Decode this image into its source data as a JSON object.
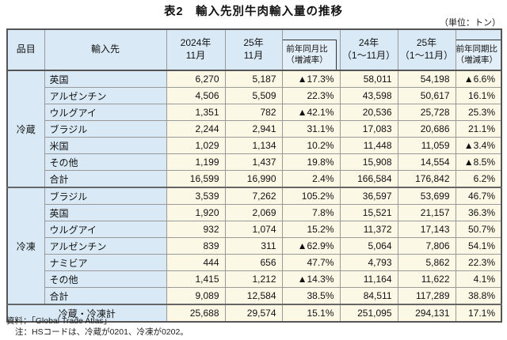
{
  "title": "表2　輸入先別牛肉輸入量の推移",
  "unit_note": "（単位：トン）",
  "table": {
    "columns": [
      {
        "label": "品目"
      },
      {
        "label": "輸入先"
      },
      {
        "line1": "2024年",
        "line2": "11月"
      },
      {
        "line1": "25年",
        "line2": "11月"
      },
      {
        "line1": "前年同月比",
        "line2": "（増減率）"
      },
      {
        "line1": "24年",
        "line2": "（1～11月）"
      },
      {
        "line1": "25年",
        "line2": "（1～11月）"
      },
      {
        "line1": "前年同期比",
        "line2": "（増減率）"
      }
    ],
    "sections": [
      {
        "label": "冷蔵",
        "rows": [
          {
            "source": "英国",
            "values": [
              "6,270",
              "5,187",
              "▲17.3%",
              "58,011",
              "54,198",
              "▲6.6%"
            ]
          },
          {
            "source": "アルゼンチン",
            "values": [
              "4,506",
              "5,509",
              "22.3%",
              "43,598",
              "50,617",
              "16.1%"
            ]
          },
          {
            "source": "ウルグアイ",
            "values": [
              "1,351",
              "782",
              "▲42.1%",
              "20,536",
              "25,728",
              "25.3%"
            ]
          },
          {
            "source": "ブラジル",
            "values": [
              "2,244",
              "2,941",
              "31.1%",
              "17,083",
              "20,686",
              "21.1%"
            ]
          },
          {
            "source": "米国",
            "values": [
              "1,029",
              "1,134",
              "10.2%",
              "11,448",
              "11,059",
              "▲3.4%"
            ]
          },
          {
            "source": "その他",
            "values": [
              "1,199",
              "1,437",
              "19.8%",
              "15,908",
              "14,554",
              "▲8.5%"
            ]
          },
          {
            "source": "合計",
            "values": [
              "16,599",
              "16,990",
              "2.4%",
              "166,584",
              "176,842",
              "6.2%"
            ]
          }
        ]
      },
      {
        "label": "冷凍",
        "rows": [
          {
            "source": "ブラジル",
            "values": [
              "3,539",
              "7,262",
              "105.2%",
              "36,597",
              "53,699",
              "46.7%"
            ]
          },
          {
            "source": "英国",
            "values": [
              "1,920",
              "2,069",
              "7.8%",
              "15,521",
              "21,157",
              "36.3%"
            ]
          },
          {
            "source": "ウルグアイ",
            "values": [
              "932",
              "1,074",
              "15.2%",
              "11,372",
              "17,143",
              "50.7%"
            ]
          },
          {
            "source": "アルゼンチン",
            "values": [
              "839",
              "311",
              "▲62.9%",
              "5,064",
              "7,806",
              "54.1%"
            ]
          },
          {
            "source": "ナミビア",
            "values": [
              "444",
              "656",
              "47.7%",
              "4,793",
              "5,862",
              "22.3%"
            ]
          },
          {
            "source": "その他",
            "values": [
              "1,415",
              "1,212",
              "▲14.3%",
              "11,164",
              "11,622",
              "4.1%"
            ]
          },
          {
            "source": "合計",
            "values": [
              "9,089",
              "12,584",
              "38.5%",
              "84,511",
              "117,289",
              "38.8%"
            ]
          }
        ]
      }
    ],
    "grand_total": {
      "label": "冷蔵・冷凍計",
      "values": [
        "25,688",
        "29,574",
        "15.1%",
        "251,095",
        "294,131",
        "17.1%"
      ]
    }
  },
  "footnotes": [
    "資料：「Global Trade Atlas」",
    "注：HSコードは、冷蔵が0201、冷凍が0202。"
  ]
}
